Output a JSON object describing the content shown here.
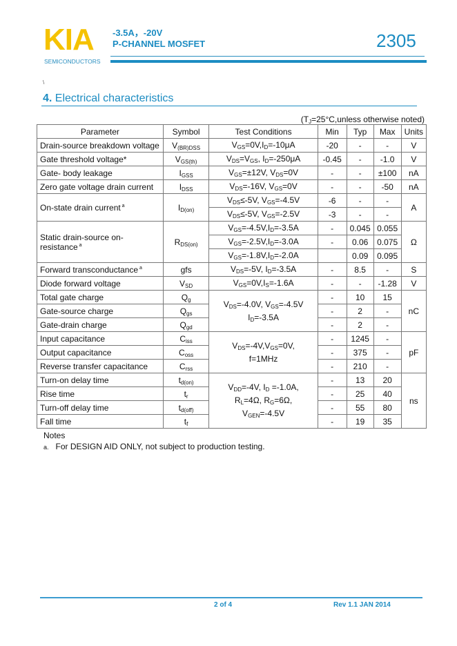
{
  "header": {
    "logo": "KIA",
    "logo_sub": "SEMICONDUCTORS",
    "line1": "-3.5A，-20V",
    "line2": "P-CHANNEL MOSFET",
    "part_number": "2305",
    "colors": {
      "logo": "#f5c200",
      "accent": "#1c8cc2"
    }
  },
  "stray_mark": "\\",
  "section": {
    "number": "4.",
    "title": "Electrical characteristics"
  },
  "condition_note": [
    "(T",
    "J",
    "=25°C,unless otherwise noted)"
  ],
  "table": {
    "headers": {
      "param": "Parameter",
      "symbol": "Symbol",
      "cond": "Test Conditions",
      "min": "Min",
      "typ": "Typ",
      "max": "Max",
      "units": "Units"
    },
    "rows": [
      {
        "param": "Drain-source breakdown voltage",
        "symbol": [
          "V",
          "(BR)DSS"
        ],
        "cond": [
          "V",
          "GS",
          "=0V,I",
          "D",
          "=-10μA"
        ],
        "min": "-20",
        "typ": "-",
        "max": "-",
        "units": "V"
      },
      {
        "param": "Gate threshold voltage*",
        "symbol": [
          "V",
          "GS(th)"
        ],
        "cond": [
          "V",
          "DS",
          "=V",
          "GS",
          ", I",
          "D",
          "=-250μA"
        ],
        "min": "-0.45",
        "typ": "-",
        "max": "-1.0",
        "units": "V"
      },
      {
        "param": "Gate- body leakage",
        "symbol": [
          "I",
          "GSS"
        ],
        "cond": [
          "V",
          "GS",
          "=±12V, V",
          "DS",
          "=0V"
        ],
        "min": "-",
        "typ": "-",
        "max": "±100",
        "units": "nA"
      },
      {
        "param": "Zero gate voltage drain current",
        "symbol": [
          "I",
          "DSS"
        ],
        "cond": [
          "V",
          "DS",
          "=-16V, V",
          "GS",
          "=0V"
        ],
        "min": "-",
        "typ": "-",
        "max": "-50",
        "units": "nA"
      },
      {
        "param": "On-state drain current",
        "note": "a",
        "symbol": [
          "I",
          "D(on)"
        ],
        "cond": [
          "V",
          "DS",
          "≤-5V, V",
          "GS",
          "=-4.5V"
        ],
        "min": "-6",
        "typ": "-",
        "max": "-",
        "units": "A",
        "rs": {
          "param": 2,
          "symbol": 2,
          "units": 2
        }
      },
      {
        "cond": [
          "V",
          "DS",
          "≤-5V, V",
          "GS",
          "=-2.5V"
        ],
        "min": "-3",
        "typ": "-",
        "max": "-"
      },
      {
        "param": "Static drain-source on-resistance",
        "note": "a",
        "symbol": [
          "R",
          "DS(on)"
        ],
        "cond": [
          "V",
          "GS",
          "=-4.5V,I",
          "D",
          "=-3.5A"
        ],
        "min": "-",
        "typ": "0.045",
        "max": "0.055",
        "units": "Ω",
        "rs": {
          "param": 3,
          "symbol": 3,
          "units": 3
        }
      },
      {
        "cond": [
          "V",
          "GS",
          "=-2.5V,I",
          "D",
          "=-3.0A"
        ],
        "min": "-",
        "typ": "0.06",
        "max": "0.075"
      },
      {
        "cond": [
          "V",
          "GS",
          "=-1.8V,I",
          "D",
          "=-2.0A"
        ],
        "min": "",
        "typ": "0.09",
        "max": "0.095"
      },
      {
        "param": "Forward transconductance",
        "note": "a",
        "symbol": [
          "gfs"
        ],
        "cond": [
          "V",
          "DS",
          "=-5V, I",
          "D",
          "=-3.5A"
        ],
        "min": "-",
        "typ": "8.5",
        "max": "-",
        "units": "S"
      },
      {
        "param": "Diode forward voltage",
        "symbol": [
          "V",
          "SD"
        ],
        "cond": [
          "V",
          "GS",
          "=0V,I",
          "S",
          "=-1.6A"
        ],
        "min": "-",
        "typ": "-",
        "max": "-1.28",
        "units": "V"
      },
      {
        "param": "Total gate charge",
        "symbol": [
          "Q",
          "g"
        ],
        "cond": [
          "V",
          "DS",
          "=-4.0V, V",
          "GS",
          "=-4.5V\nI",
          "D",
          "=-3.5A"
        ],
        "min": "-",
        "typ": "10",
        "max": "15",
        "units": "nC",
        "rs": {
          "cond": 3,
          "units": 3
        }
      },
      {
        "param": "Gate-source charge",
        "symbol": [
          "Q",
          "gs"
        ],
        "min": "-",
        "typ": "2",
        "max": "-"
      },
      {
        "param": "Gate-drain charge",
        "symbol": [
          "Q",
          "gd"
        ],
        "min": "-",
        "typ": "2",
        "max": "-"
      },
      {
        "param": "Input capacitance",
        "symbol": [
          "C",
          "iss"
        ],
        "cond": [
          "V",
          "DS",
          "=-4V,V",
          "GS",
          "=0V,\nf=1MHz"
        ],
        "min": "-",
        "typ": "1245",
        "max": "-",
        "units": "pF",
        "rs": {
          "cond": 3,
          "units": 3
        }
      },
      {
        "param": "Output capacitance",
        "symbol": [
          "C",
          "oss"
        ],
        "min": "-",
        "typ": "375",
        "max": "-"
      },
      {
        "param": "Reverse transfer capacitance",
        "symbol": [
          "C",
          "rss"
        ],
        "min": "-",
        "typ": "210",
        "max": "-"
      },
      {
        "param": "Turn-on delay time",
        "symbol": [
          "t",
          "d(on)"
        ],
        "cond": [
          "V",
          "DD",
          "=-4V, I",
          "D",
          " =-1.0A,\nR",
          "L",
          "=4Ω, R",
          "G",
          "=6Ω,\nV",
          "GEN",
          "=-4.5V"
        ],
        "min": "-",
        "typ": "13",
        "max": "20",
        "units": "ns",
        "rs": {
          "cond": 4,
          "units": 4
        }
      },
      {
        "param": "Rise time",
        "symbol": [
          "t",
          "r"
        ],
        "min": "-",
        "typ": "25",
        "max": "40"
      },
      {
        "param": "Turn-off delay time",
        "symbol": [
          "t",
          "d(off)"
        ],
        "min": "-",
        "typ": "55",
        "max": "80"
      },
      {
        "param": "Fall time",
        "symbol": [
          "t",
          "f"
        ],
        "min": "-",
        "typ": "19",
        "max": "35"
      }
    ]
  },
  "notes": {
    "title": "Notes",
    "items": [
      {
        "label": "a.",
        "text": "For DESIGN AID ONLY, not subject to production testing."
      }
    ]
  },
  "footer": {
    "page": "2 of 4",
    "revision": "Rev 1.1 JAN 2014"
  }
}
